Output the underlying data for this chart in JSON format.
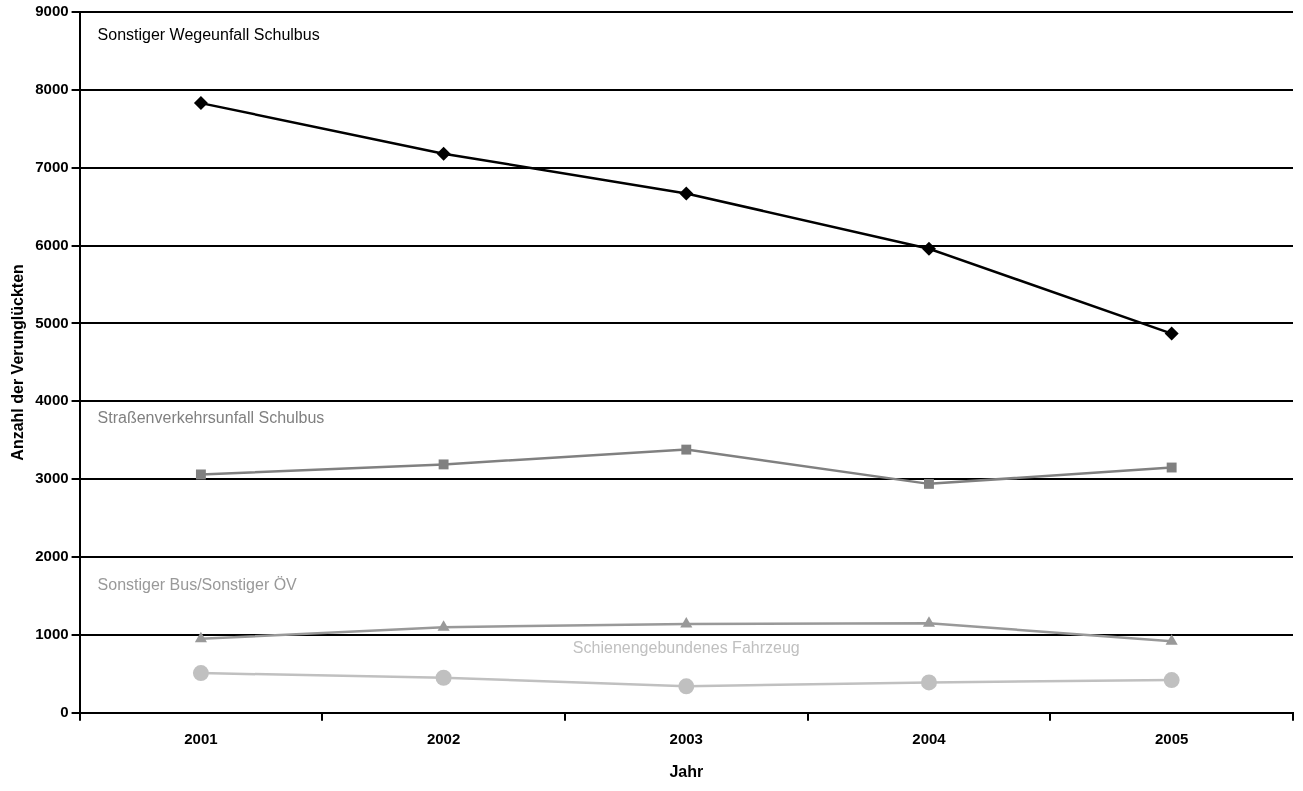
{
  "chart_data": {
    "type": "line",
    "xlabel": "Jahr",
    "ylabel": "Anzahl der Verunglückten",
    "categories": [
      "2001",
      "2002",
      "2003",
      "2004",
      "2005"
    ],
    "series": [
      {
        "name": "Sonstiger Wegeunfall Schulbus",
        "color": "#000000",
        "marker": "diamond",
        "values": [
          7830,
          7180,
          6670,
          5960,
          4870
        ]
      },
      {
        "name": "Straßenverkehrsunfall Schulbus",
        "color": "#808080",
        "marker": "square",
        "values": [
          3060,
          3190,
          3380,
          2940,
          3150
        ]
      },
      {
        "name": "Sonstiger Bus/Sonstiger ÖV",
        "color": "#999999",
        "marker": "triangle",
        "values": [
          950,
          1100,
          1140,
          1150,
          920
        ]
      },
      {
        "name": "Schienengebundenes Fahrzeug",
        "color": "#c0c0c0",
        "marker": "circle",
        "values": [
          510,
          450,
          340,
          390,
          420
        ]
      }
    ],
    "ylim": [
      0,
      9000
    ],
    "yticks": [
      0,
      1000,
      2000,
      3000,
      4000,
      5000,
      6000,
      7000,
      8000,
      9000
    ],
    "grid": "y",
    "legend": false
  }
}
